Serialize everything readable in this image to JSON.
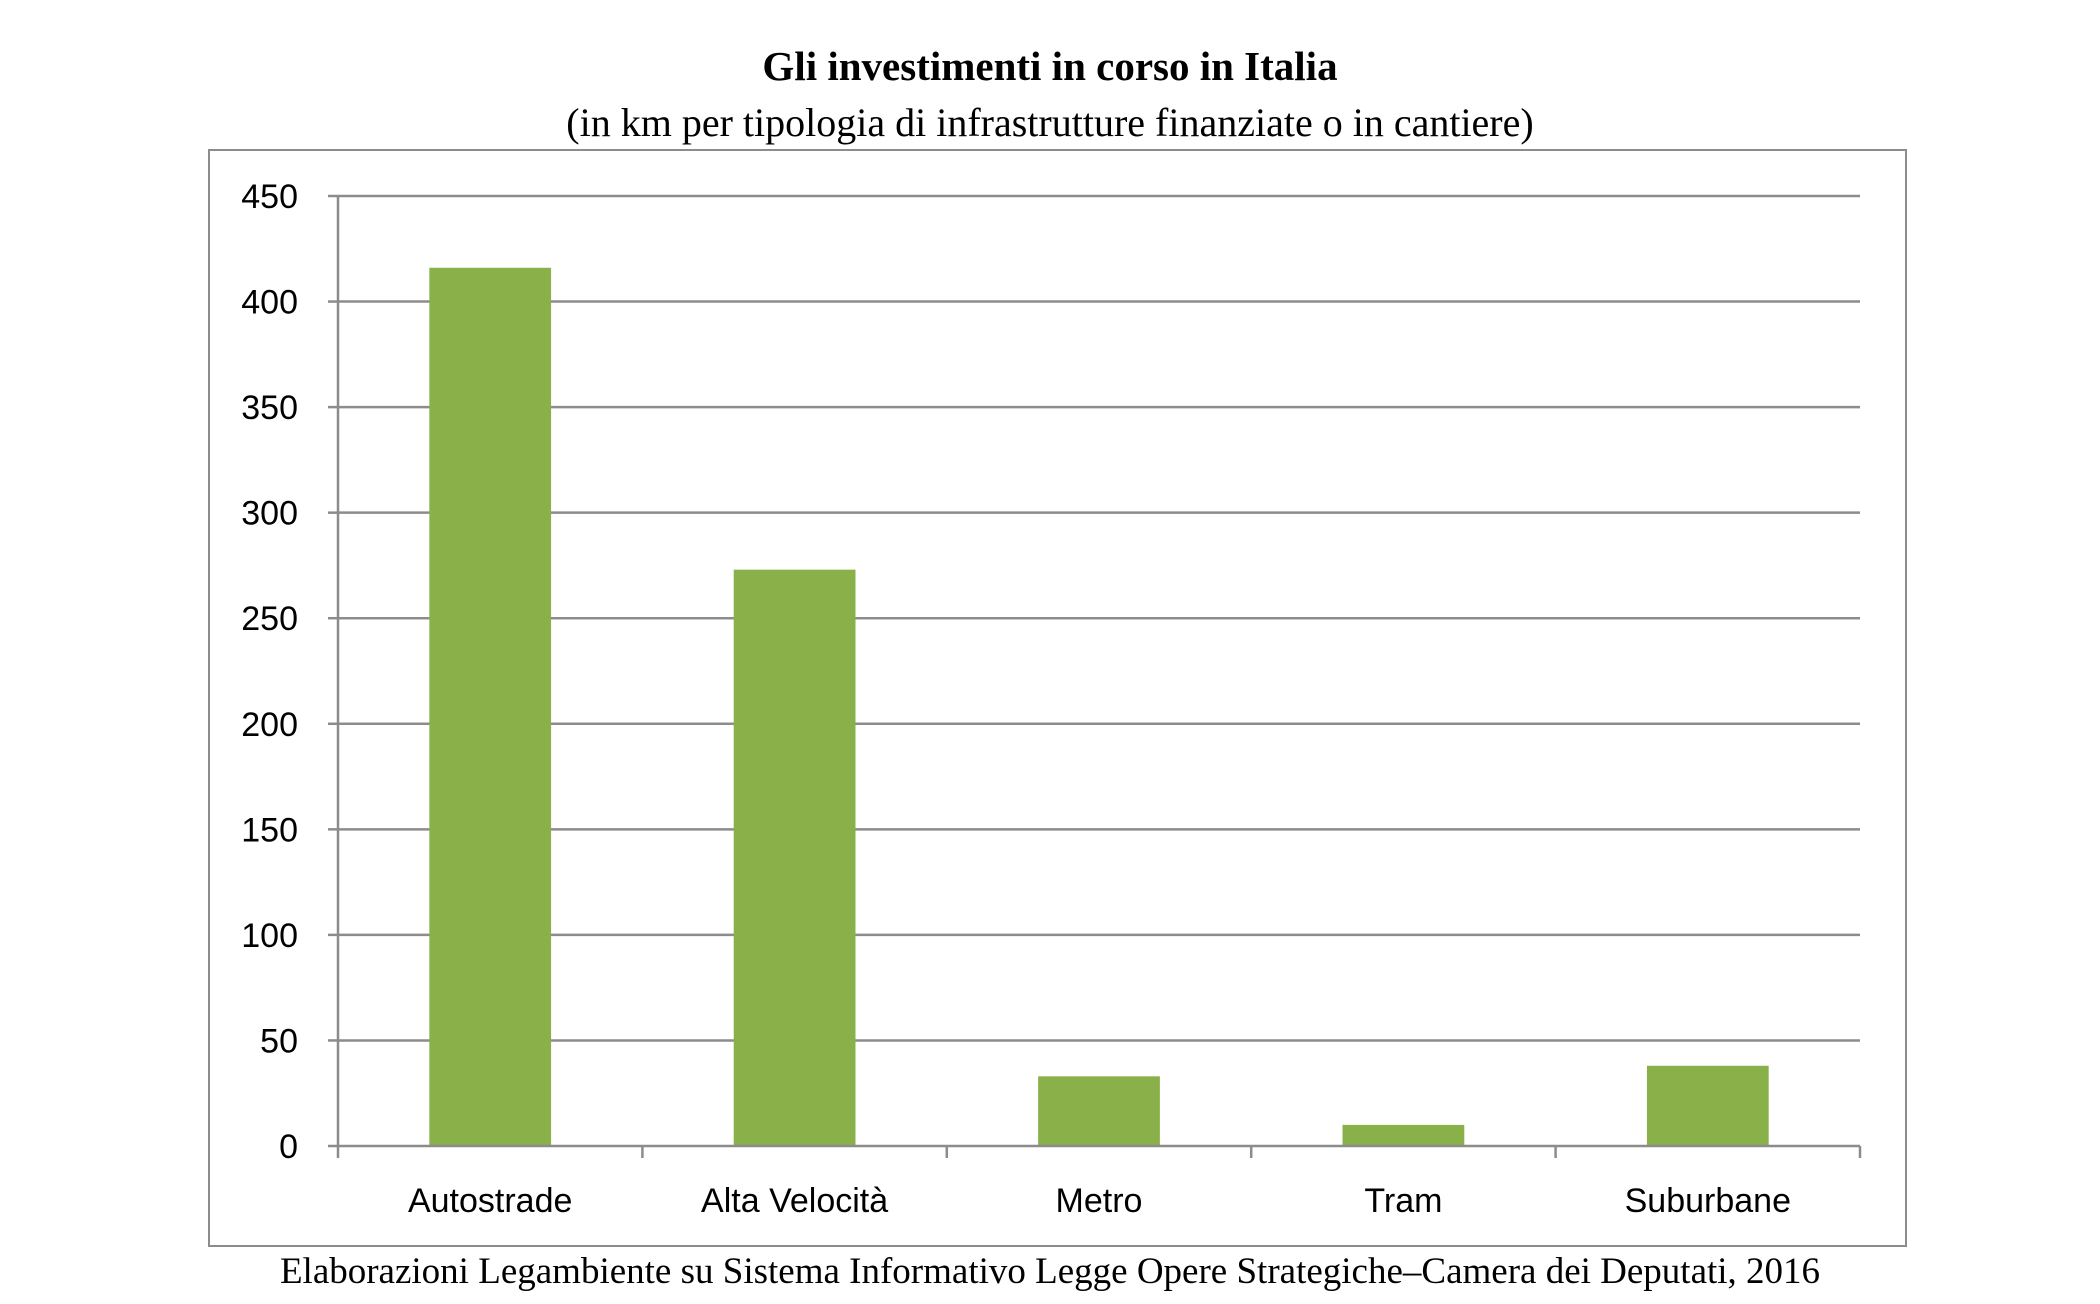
{
  "chart_data": {
    "type": "bar",
    "title": "Gli investimenti in corso in Italia",
    "subtitle": "(in km per tipologia di infrastrutture finanziate o in cantiere)",
    "categories": [
      "Autostrade",
      "Alta Velocità",
      "Metro",
      "Tram",
      "Suburbane"
    ],
    "values": [
      416,
      273,
      33,
      10,
      38
    ],
    "ylim": [
      0,
      450
    ],
    "yticks": [
      0,
      50,
      100,
      150,
      200,
      250,
      300,
      350,
      400,
      450
    ],
    "xlabel": "",
    "ylabel": "",
    "grid": true,
    "legend": "none",
    "bar_color": "#8AB04A",
    "source": "Elaborazioni Legambiente su Sistema Informativo Legge Opere Strategiche–Camera dei Deputati, 2016"
  }
}
